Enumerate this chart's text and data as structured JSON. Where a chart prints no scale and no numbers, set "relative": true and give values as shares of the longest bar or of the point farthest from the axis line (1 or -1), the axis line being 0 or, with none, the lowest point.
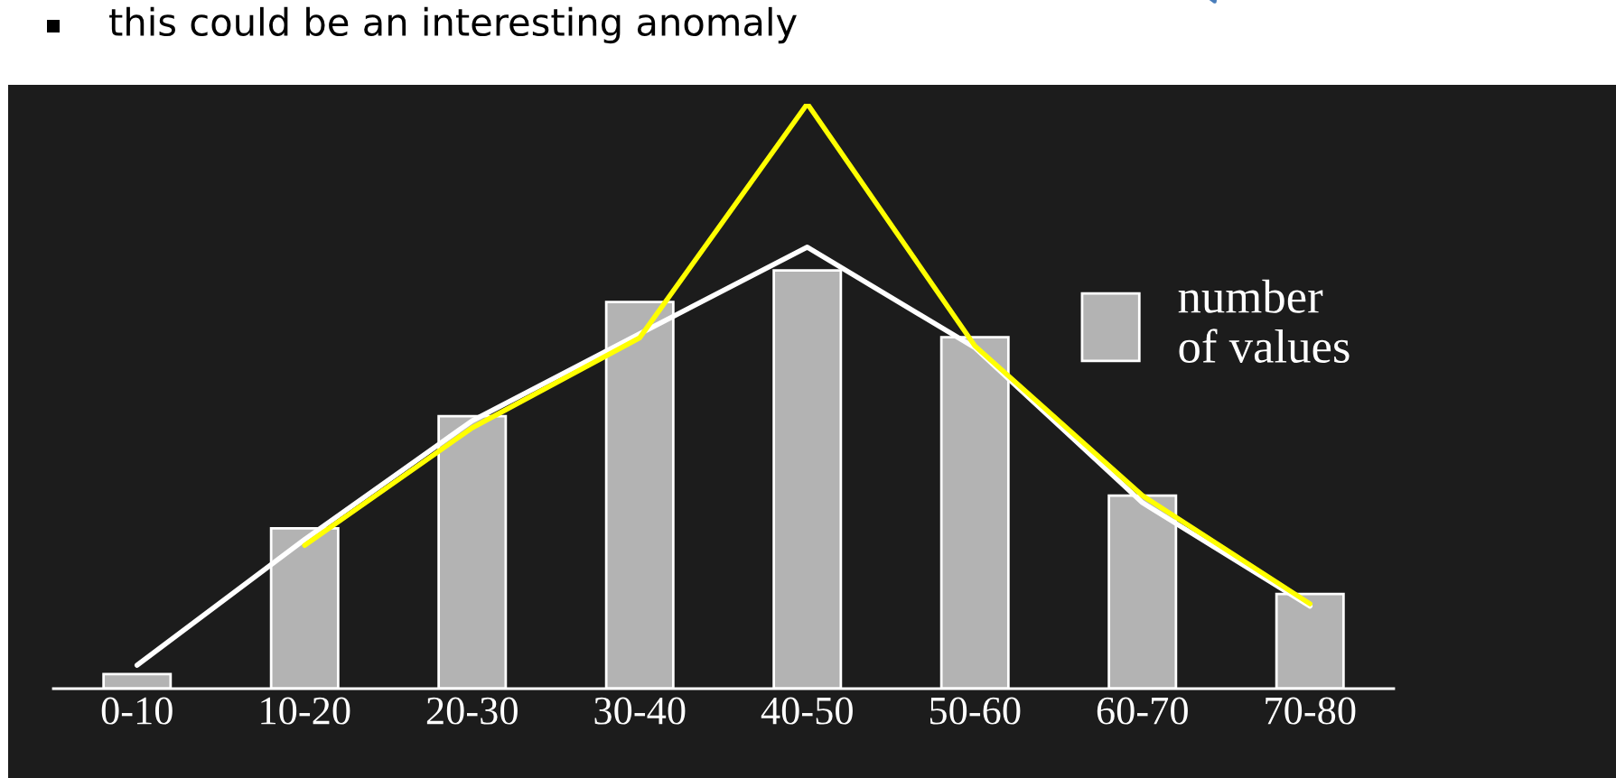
{
  "chart_data": {
    "type": "bar",
    "relative": true,
    "annotations": [
      "this could be an interesting anomaly"
    ],
    "categories": [
      "0-10",
      "10-20",
      "20-30",
      "30-40",
      "40-50",
      "50-60",
      "60-70",
      "70-80"
    ],
    "legend": "right",
    "grid": false,
    "marker": "none",
    "series": [
      {
        "name": "number\nof values",
        "color": "#b3b3b3",
        "values": [
          0.025,
          0.274,
          0.466,
          0.661,
          0.715,
          0.601,
          0.33,
          0.162
        ]
      },
      {
        "type": "line",
        "color": "#ffffff",
        "values": [
          0.04,
          0.255,
          0.458,
          0.607,
          0.755,
          0.583,
          0.318,
          0.141
        ]
      },
      {
        "type": "line",
        "color": "#ffff00",
        "values": [
          null,
          0.245,
          0.446,
          0.6,
          1.0,
          0.586,
          0.33,
          0.145
        ]
      }
    ]
  }
}
